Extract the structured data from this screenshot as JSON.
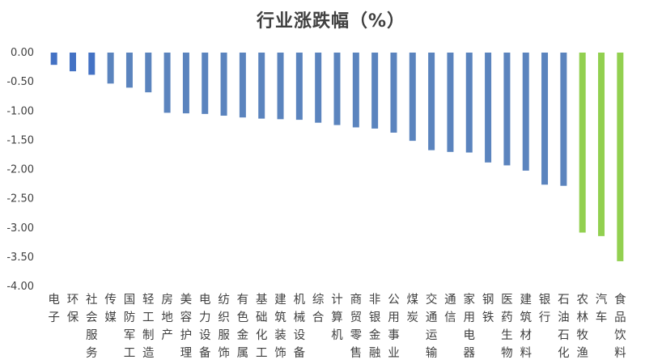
{
  "chart_data": {
    "type": "bar",
    "title": "行业涨跌幅（%）",
    "ylim": [
      -4.0,
      0.0
    ],
    "yticks": [
      "0.00",
      "-0.50",
      "-1.00",
      "-1.50",
      "-2.00",
      "-2.50",
      "-3.00",
      "-3.50",
      "-4.00"
    ],
    "grid": false,
    "categories": [
      "电子",
      "环保",
      "社会服务",
      "传媒",
      "国防军工",
      "轻工制造",
      "房地产",
      "美容护理",
      "电力设备",
      "纺织服饰",
      "有色金属",
      "基础化工",
      "建筑装饰",
      "机械设备",
      "综合",
      "计算机",
      "商贸零售",
      "非银金融",
      "公用事业",
      "煤炭",
      "交通运输",
      "通信",
      "家用电器",
      "钢铁",
      "医药生物",
      "建筑材料",
      "银行",
      "石油石化",
      "农林牧渔",
      "汽车",
      "食品饮料"
    ],
    "values": [
      -0.21,
      -0.32,
      -0.38,
      -0.53,
      -0.6,
      -0.68,
      -1.03,
      -1.04,
      -1.05,
      -1.08,
      -1.11,
      -1.13,
      -1.14,
      -1.15,
      -1.2,
      -1.24,
      -1.28,
      -1.3,
      -1.37,
      -1.51,
      -1.67,
      -1.7,
      -1.71,
      -1.88,
      -1.93,
      -2.02,
      -2.26,
      -2.28,
      -3.08,
      -3.14,
      -3.57
    ],
    "colors": {
      "highlight_first": "#4472C4",
      "default": "#5B84BE",
      "tail": "#92D050"
    },
    "tail_count": 3,
    "highlight_count": 3
  }
}
